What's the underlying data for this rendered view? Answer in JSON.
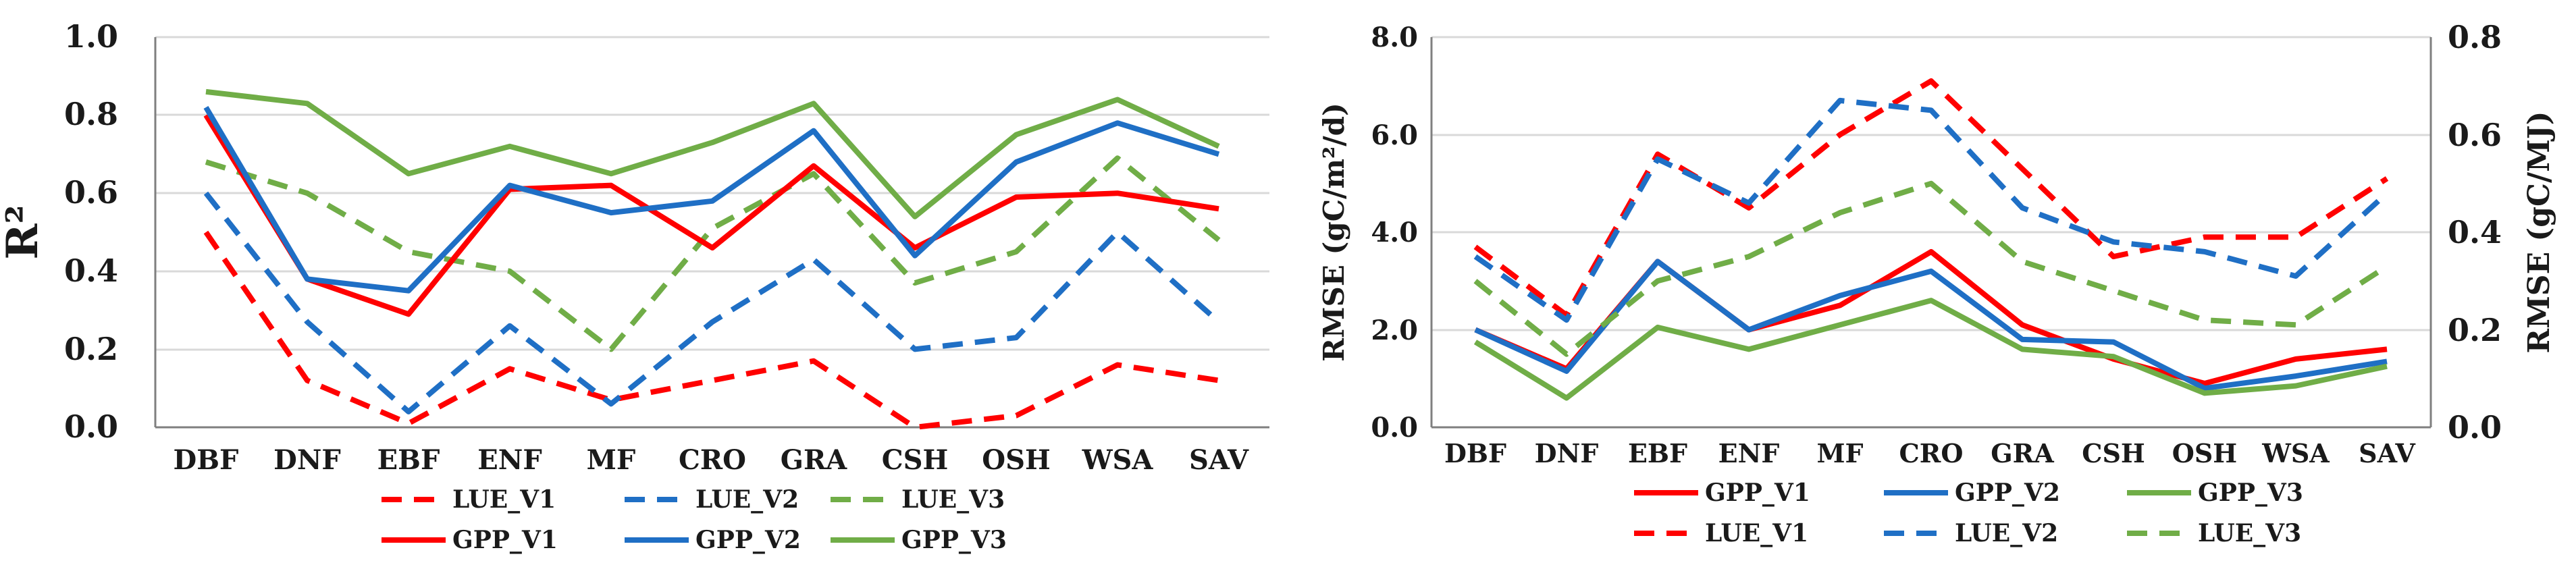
{
  "chart_data": [
    {
      "type": "line",
      "title": "",
      "xlabel": "",
      "ylabel": "R²",
      "ylim": [
        0,
        1.0
      ],
      "yticks": [
        "0.0",
        "0.2",
        "0.4",
        "0.6",
        "0.8",
        "1.0"
      ],
      "categories": [
        "DBF",
        "DNF",
        "EBF",
        "ENF",
        "MF",
        "CRO",
        "GRA",
        "CSH",
        "OSH",
        "WSA",
        "SAV"
      ],
      "legend_position": "bottom",
      "series": [
        {
          "name": "LUE_V1",
          "color": "#ff0000",
          "dash": "dashed",
          "values": [
            0.5,
            0.12,
            0.01,
            0.15,
            0.07,
            0.12,
            0.17,
            0.0,
            0.03,
            0.16,
            0.12
          ]
        },
        {
          "name": "LUE_V2",
          "color": "#1f6fc5",
          "dash": "dashed",
          "values": [
            0.6,
            0.27,
            0.04,
            0.26,
            0.06,
            0.27,
            0.43,
            0.2,
            0.23,
            0.5,
            0.27
          ]
        },
        {
          "name": "LUE_V3",
          "color": "#70ad47",
          "dash": "dashed",
          "values": [
            0.68,
            0.6,
            0.45,
            0.4,
            0.2,
            0.51,
            0.65,
            0.37,
            0.45,
            0.69,
            0.48
          ]
        },
        {
          "name": "GPP_V1",
          "color": "#ff0000",
          "dash": "solid",
          "values": [
            0.8,
            0.38,
            0.29,
            0.61,
            0.62,
            0.46,
            0.67,
            0.46,
            0.59,
            0.6,
            0.56
          ]
        },
        {
          "name": "GPP_V2",
          "color": "#1f6fc5",
          "dash": "solid",
          "values": [
            0.82,
            0.38,
            0.35,
            0.62,
            0.55,
            0.58,
            0.76,
            0.44,
            0.68,
            0.78,
            0.7
          ]
        },
        {
          "name": "GPP_V3",
          "color": "#70ad47",
          "dash": "solid",
          "values": [
            0.86,
            0.83,
            0.65,
            0.72,
            0.65,
            0.73,
            0.83,
            0.54,
            0.75,
            0.84,
            0.72
          ]
        }
      ]
    },
    {
      "type": "line",
      "title": "",
      "xlabel": "",
      "ylabel": "RMSE (gC/m²/d)",
      "ylabel_right": "RMSE (gC/MJ)",
      "ylim": [
        0,
        8.0
      ],
      "ylim_right": [
        0,
        0.8
      ],
      "yticks": [
        "0.0",
        "2.0",
        "4.0",
        "6.0",
        "8.0"
      ],
      "yticks_right": [
        "0.0",
        "0.2",
        "0.4",
        "0.6",
        "0.8"
      ],
      "categories": [
        "DBF",
        "DNF",
        "EBF",
        "ENF",
        "MF",
        "CRO",
        "GRA",
        "CSH",
        "OSH",
        "WSA",
        "SAV"
      ],
      "legend_position": "bottom",
      "series": [
        {
          "name": "GPP_V1",
          "color": "#ff0000",
          "dash": "solid",
          "axis": "left",
          "values": [
            2.0,
            1.2,
            3.4,
            2.0,
            2.5,
            3.6,
            2.1,
            1.4,
            0.9,
            1.4,
            1.6
          ]
        },
        {
          "name": "GPP_V2",
          "color": "#1f6fc5",
          "dash": "solid",
          "axis": "left",
          "values": [
            2.0,
            1.15,
            3.4,
            2.0,
            2.7,
            3.2,
            1.8,
            1.75,
            0.8,
            1.05,
            1.35
          ]
        },
        {
          "name": "GPP_V3",
          "color": "#70ad47",
          "dash": "solid",
          "axis": "left",
          "values": [
            1.75,
            0.6,
            2.05,
            1.6,
            2.1,
            2.6,
            1.6,
            1.45,
            0.7,
            0.85,
            1.25
          ]
        },
        {
          "name": "LUE_V1",
          "color": "#ff0000",
          "dash": "dashed",
          "axis": "right",
          "values": [
            0.37,
            0.23,
            0.56,
            0.45,
            0.6,
            0.71,
            0.53,
            0.35,
            0.39,
            0.39,
            0.51
          ]
        },
        {
          "name": "LUE_V2",
          "color": "#1f6fc5",
          "dash": "dashed",
          "axis": "right",
          "values": [
            0.35,
            0.22,
            0.55,
            0.46,
            0.67,
            0.65,
            0.45,
            0.38,
            0.36,
            0.31,
            0.48
          ]
        },
        {
          "name": "LUE_V3",
          "color": "#70ad47",
          "dash": "dashed",
          "axis": "right",
          "values": [
            0.3,
            0.15,
            0.3,
            0.35,
            0.44,
            0.5,
            0.34,
            0.28,
            0.22,
            0.21,
            0.33
          ]
        }
      ]
    }
  ]
}
